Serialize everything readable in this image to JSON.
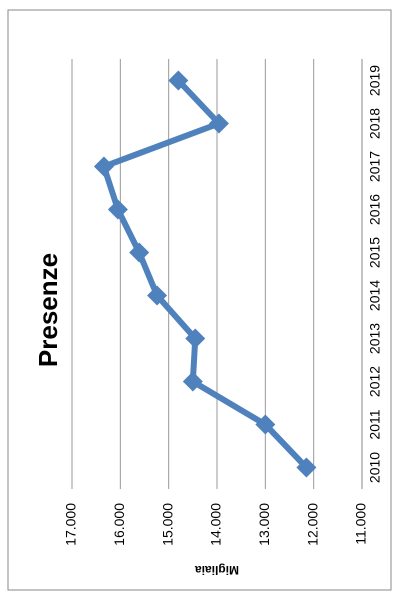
{
  "chart_data": {
    "type": "line",
    "title": "Presenze",
    "y_label": "Migliaia",
    "categories": [
      "2010",
      "2011",
      "2012",
      "2013",
      "2014",
      "2015",
      "2016",
      "2017",
      "2018",
      "2019"
    ],
    "series": [
      {
        "name": "Presenze",
        "color": "#4f81bd",
        "values": [
          12150,
          13000,
          14500,
          14450,
          15240,
          15610,
          16050,
          16340,
          13960,
          14800
        ]
      }
    ],
    "ylim": [
      11000,
      17000
    ],
    "yticks": [
      {
        "value": 11000,
        "label": "11.000"
      },
      {
        "value": 12000,
        "label": "12.000"
      },
      {
        "value": 13000,
        "label": "13.000"
      },
      {
        "value": 14000,
        "label": "14.000"
      },
      {
        "value": 15000,
        "label": "15.000"
      },
      {
        "value": 16000,
        "label": "16.000"
      },
      {
        "value": 17000,
        "label": "17.000"
      }
    ],
    "grid": true
  }
}
